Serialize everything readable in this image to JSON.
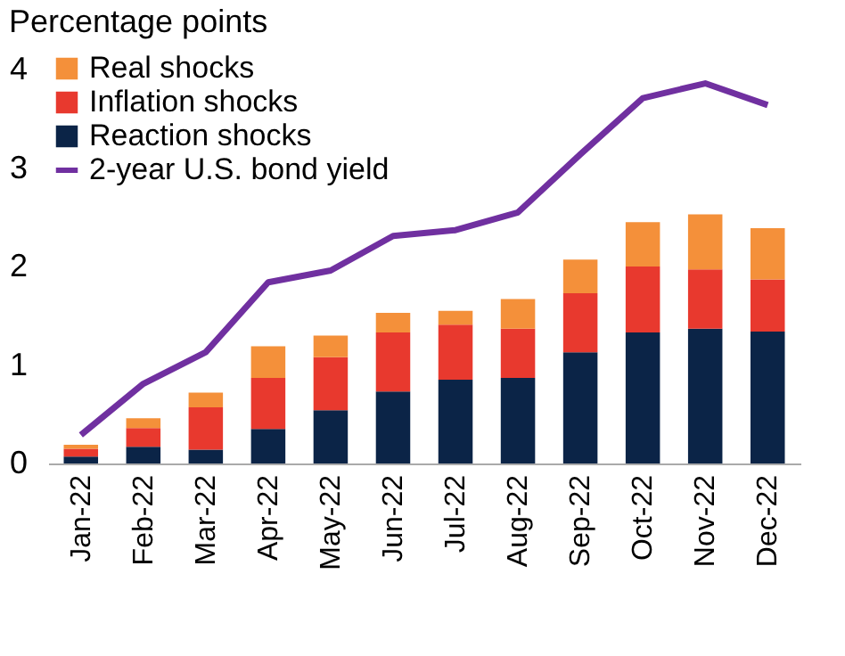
{
  "chart_data": {
    "type": "bar",
    "stacked": true,
    "ylabel": "Percentage points",
    "categories": [
      "Jan-22",
      "Feb-22",
      "Mar-22",
      "Apr-22",
      "May-22",
      "Jun-22",
      "Jul-22",
      "Aug-22",
      "Sep-22",
      "Oct-22",
      "Nov-22",
      "Dec-22"
    ],
    "series": [
      {
        "name": "Reaction shocks",
        "color": "#0b2447",
        "values": [
          0.07,
          0.17,
          0.14,
          0.35,
          0.54,
          0.73,
          0.85,
          0.87,
          1.13,
          1.33,
          1.37,
          1.34
        ]
      },
      {
        "name": "Inflation shocks",
        "color": "#e8392e",
        "values": [
          0.08,
          0.19,
          0.43,
          0.52,
          0.54,
          0.6,
          0.56,
          0.5,
          0.6,
          0.67,
          0.6,
          0.53
        ]
      },
      {
        "name": "Real shocks",
        "color": "#f4903a",
        "values": [
          0.04,
          0.1,
          0.15,
          0.32,
          0.22,
          0.2,
          0.14,
          0.3,
          0.34,
          0.45,
          0.56,
          0.52
        ]
      },
      {
        "name": "2-year U.S. bond yield",
        "type": "line",
        "color": "#7030a0",
        "values": [
          0.29,
          0.81,
          1.13,
          1.84,
          1.96,
          2.31,
          2.37,
          2.55,
          3.14,
          3.71,
          3.86,
          3.64
        ]
      }
    ],
    "ylim": [
      0,
      4.2
    ],
    "yticks": [
      0,
      1,
      2,
      3,
      4
    ],
    "grid": false,
    "legend": "top left"
  }
}
